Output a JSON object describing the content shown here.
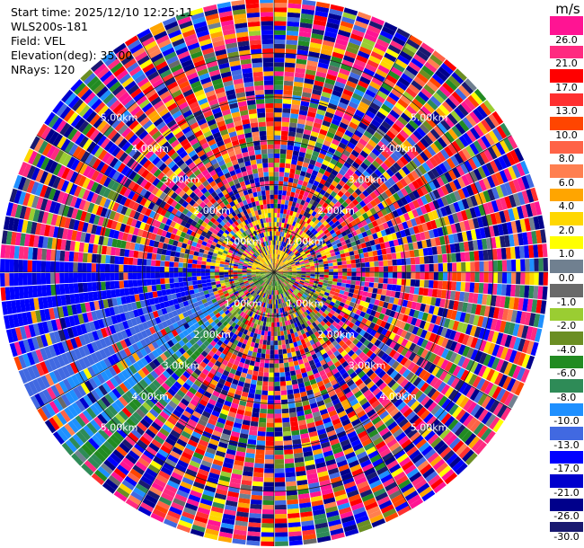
{
  "info": {
    "start_time": "Start time: 2025/12/10 12:25:11",
    "site": "WLS200s-181",
    "field": "Field: VEL",
    "elevation": "Elevation(deg): 35.00",
    "nrays": "NRays: 120"
  },
  "colorbar": {
    "unit": "m/s",
    "labels": [
      "26.0",
      "21.0",
      "17.0",
      "13.0",
      "10.0",
      "8.0",
      "6.0",
      "4.0",
      "2.0",
      "1.0",
      "0.0",
      "-1.0",
      "-2.0",
      "-4.0",
      "-6.0",
      "-8.0",
      "-10.0",
      "-13.0",
      "-17.0",
      "-21.0",
      "-26.0",
      "-30.0"
    ],
    "colors": [
      "#ff1493",
      "#ff2a80",
      "#ff0000",
      "#ff3030",
      "#ff4500",
      "#ff6347",
      "#ff7f50",
      "#ffa500",
      "#ffd700",
      "#ffff00",
      "#708090",
      "#696969",
      "#9acd32",
      "#6b8e23",
      "#228b22",
      "#2e8b57",
      "#1e90ff",
      "#4169e1",
      "#0000ff",
      "#0000cd",
      "#00008b",
      "#191970"
    ]
  },
  "chart_data": {
    "type": "heatmap",
    "projection": "polar PPI",
    "field": "VEL",
    "unit": "m/s",
    "elevation_deg": 35.0,
    "nrays": 120,
    "range_ring_labels": [
      "1.00km",
      "2.00km",
      "3.00km",
      "4.00km",
      "5.00km"
    ],
    "range_rings_km": [
      1,
      2,
      3,
      4,
      5
    ],
    "max_range_km": 6.25,
    "crosshair_spokes_deg": [
      0,
      30,
      60,
      90,
      120,
      150,
      180,
      210,
      240,
      270,
      300,
      330
    ],
    "color_scale_m_s": [
      30,
      26,
      21,
      17,
      13,
      10,
      8,
      6,
      4,
      2,
      1,
      0,
      -1,
      -2,
      -4,
      -6,
      -8,
      -10,
      -13,
      -17,
      -21,
      -26,
      -30
    ],
    "near_field": "weak velocities: yellow/orange (0 to 6 m/s) north half, green/olive (-1 to -6 m/s) south half within ~0.5 km",
    "coherent_region": "blue/green (approximately -6 to -17 m/s) echo spanning azimuths ~220-270 deg, ranges ~1.5-6 km",
    "remaining_area": "noise: random velocities over the full color range"
  }
}
